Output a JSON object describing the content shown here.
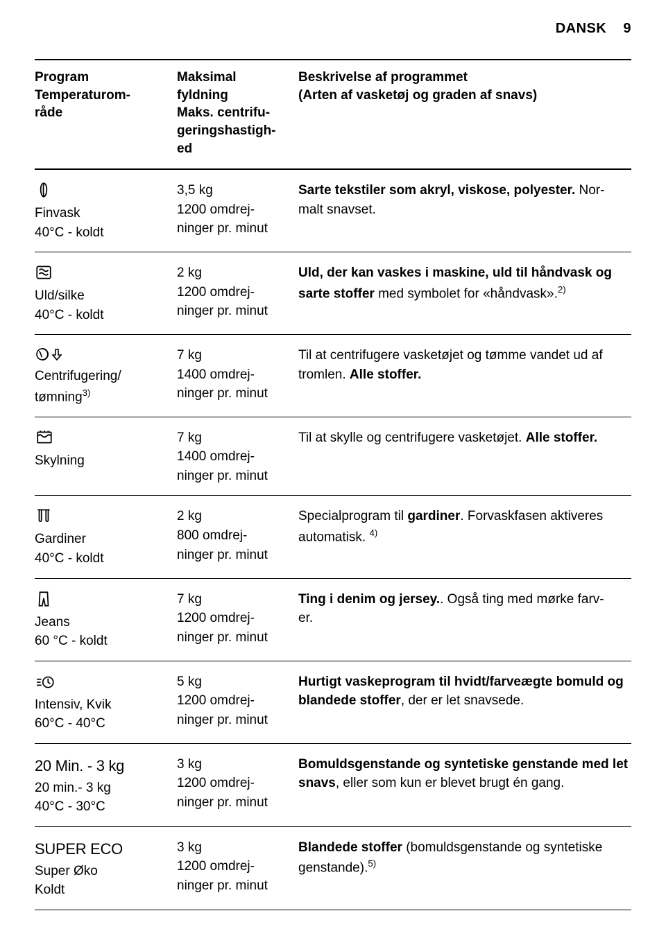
{
  "header": {
    "lang": "DANSK",
    "page": "9"
  },
  "columns": {
    "program": "Program\nTemperaturom-\nråde",
    "load": "Maksimal\nfyldning\nMaks. centrifu-\ngeringshastigh-\ned",
    "desc": "Beskrivelse af programmet\n(Arten af vasketøj og graden af snavs)"
  },
  "rows": [
    {
      "icon": "delicate",
      "name": "Finvask",
      "temp": "40°C - koldt",
      "load": "3,5 kg\n1200 omdrej-\nninger pr. minut",
      "desc_pre": "Sarte tekstiler som akryl, viskose, polyester.",
      "desc_post": " Nor-\nmalt snavset."
    },
    {
      "icon": "wool",
      "name": "Uld/silke",
      "temp": "40°C - koldt",
      "load": "2 kg\n1200 omdrej-\nninger pr. minut",
      "desc_pre": "Uld, der kan vaskes i maskine, uld til håndvask og sarte stoffer",
      "desc_post": " med symbolet for «håndvask».",
      "sup": "2)"
    },
    {
      "icon": "spin",
      "name": "Centrifugering/",
      "name2_pre": "tømning",
      "name2_sup": "3)",
      "temp": "",
      "load": "7 kg\n1400 omdrej-\nninger pr. minut",
      "desc_plain": "Til at centrifugere vasketøjet og tømme vandet ud af tromlen. ",
      "desc_bold": "Alle stoffer."
    },
    {
      "icon": "rinse",
      "name": "Skylning",
      "temp": "",
      "load": "7 kg\n1400 omdrej-\nninger pr. minut",
      "desc_plain": "Til at skylle og centrifugere vasketøjet. ",
      "desc_bold": "Alle stoffer."
    },
    {
      "icon": "curtains",
      "name": "Gardiner",
      "temp": "40°C - koldt",
      "load": "2 kg\n800 omdrej-\nninger pr. minut",
      "desc_plain": "Specialprogram til ",
      "desc_bold": "gardiner",
      "desc_post": ". Forvaskfasen aktiveres automatisk. ",
      "sup": "4)"
    },
    {
      "icon": "jeans",
      "name": "Jeans",
      "temp": "60 °C - koldt",
      "load": "7 kg\n1200 omdrej-\nninger pr. minut",
      "desc_pre": "Ting i denim og jersey.",
      "desc_post": ". Også ting med mørke farv-\ner."
    },
    {
      "icon": "quick",
      "name": "Intensiv, Kvik",
      "temp": "60°C - 40°C",
      "load": "5 kg\n1200 omdrej-\nninger pr. minut",
      "desc_pre": "Hurtigt vaskeprogram til hvidt/farveægte bomuld og blandede stoffer",
      "desc_post": ", der er let snavsede."
    },
    {
      "label": "20 Min. - 3 kg",
      "name": "20 min.- 3 kg",
      "temp": "40°C - 30°C",
      "load": "3 kg\n1200 omdrej-\nninger pr. minut",
      "desc_pre": "Bomuldsgenstande og syntetiske genstande med let snavs",
      "desc_post": ", eller som kun er blevet brugt én gang."
    },
    {
      "label": "SUPER ECO",
      "name": "Super Øko",
      "temp": "Koldt",
      "load": "3 kg\n1200 omdrej-\nninger pr. minut",
      "desc_pre": "Blandede stoffer",
      "desc_post": " (bomuldsgenstande og syntetiske genstande).",
      "sup": "5)"
    }
  ]
}
